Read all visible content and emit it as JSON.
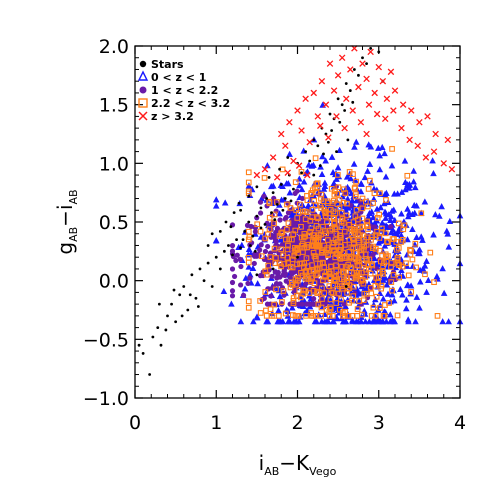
{
  "chart_data": {
    "type": "scatter",
    "title": "",
    "xlabel": {
      "main": "i",
      "sub": "AB",
      "dash": "−K",
      "sub2": "Vego"
    },
    "ylabel": {
      "main": "g",
      "sub": "AB",
      "dash": "−i",
      "sub2": "AB"
    },
    "xlim": [
      0,
      4
    ],
    "ylim": [
      -1.0,
      2.0
    ],
    "x_ticks": [
      0,
      1,
      2,
      3,
      4
    ],
    "x_tick_labels": [
      "0",
      "1",
      "2",
      "3",
      "4"
    ],
    "y_ticks": [
      -1.0,
      -0.5,
      0.0,
      0.5,
      1.0,
      1.5,
      2.0
    ],
    "y_tick_labels": [
      "−1.0",
      "−0.5",
      "0.0",
      "0.5",
      "1.0",
      "1.5",
      "2.0"
    ],
    "legend_position": "top-left",
    "series": [
      {
        "name": "Stars",
        "marker": "filled-circle",
        "color": "#000000",
        "points": [
          [
            0.05,
            -0.55
          ],
          [
            0.1,
            -0.62
          ],
          [
            0.18,
            -0.8
          ],
          [
            0.22,
            -0.48
          ],
          [
            0.28,
            -0.4
          ],
          [
            0.32,
            -0.55
          ],
          [
            0.4,
            -0.3
          ],
          [
            0.45,
            -0.2
          ],
          [
            0.5,
            -0.35
          ],
          [
            0.55,
            -0.12
          ],
          [
            0.6,
            -0.05
          ],
          [
            0.65,
            -0.25
          ],
          [
            0.7,
            0.05
          ],
          [
            0.75,
            -0.15
          ],
          [
            0.8,
            0.1
          ],
          [
            0.85,
            0.0
          ],
          [
            0.9,
            0.15
          ],
          [
            0.95,
            -0.05
          ],
          [
            1.0,
            0.2
          ],
          [
            1.05,
            0.1
          ],
          [
            1.1,
            0.25
          ],
          [
            1.15,
            0.3
          ],
          [
            1.2,
            0.22
          ],
          [
            1.25,
            0.35
          ],
          [
            1.3,
            0.28
          ],
          [
            1.35,
            0.42
          ],
          [
            1.4,
            0.5
          ],
          [
            1.45,
            0.38
          ],
          [
            1.5,
            0.55
          ],
          [
            1.55,
            0.62
          ],
          [
            1.6,
            0.48
          ],
          [
            1.62,
            0.7
          ],
          [
            1.68,
            0.58
          ],
          [
            1.7,
            0.75
          ],
          [
            1.75,
            0.65
          ],
          [
            1.8,
            0.82
          ],
          [
            1.85,
            0.7
          ],
          [
            1.9,
            0.9
          ],
          [
            1.95,
            0.78
          ],
          [
            2.0,
            1.0
          ],
          [
            2.05,
            0.92
          ],
          [
            2.1,
            1.1
          ],
          [
            2.15,
            1.02
          ],
          [
            2.2,
            1.2
          ],
          [
            2.25,
            1.15
          ],
          [
            2.3,
            1.3
          ],
          [
            2.35,
            1.25
          ],
          [
            2.4,
            1.42
          ],
          [
            2.45,
            1.38
          ],
          [
            2.5,
            1.55
          ],
          [
            2.55,
            1.5
          ],
          [
            2.6,
            1.68
          ],
          [
            2.65,
            1.62
          ],
          [
            2.7,
            1.8
          ],
          [
            2.75,
            1.75
          ],
          [
            2.8,
            1.9
          ],
          [
            2.85,
            1.85
          ],
          [
            2.9,
            1.98
          ],
          [
            3.0,
            1.95
          ],
          [
            3.05,
            1.7
          ],
          [
            1.3,
            0.6
          ],
          [
            1.4,
            0.72
          ],
          [
            1.5,
            0.8
          ],
          [
            1.55,
            0.45
          ],
          [
            1.65,
            0.88
          ],
          [
            1.72,
            0.52
          ],
          [
            1.78,
            0.95
          ],
          [
            1.82,
            0.6
          ],
          [
            1.88,
            1.05
          ],
          [
            1.92,
            0.68
          ],
          [
            0.9,
            0.3
          ],
          [
            0.95,
            0.4
          ],
          [
            1.05,
            0.42
          ],
          [
            1.12,
            0.5
          ],
          [
            1.18,
            0.46
          ],
          [
            1.22,
            0.58
          ],
          [
            1.28,
            0.66
          ],
          [
            1.33,
            0.35
          ],
          [
            1.42,
            0.3
          ],
          [
            1.48,
            0.25
          ],
          [
            2.2,
            0.9
          ],
          [
            2.28,
            0.98
          ],
          [
            2.32,
            1.08
          ],
          [
            2.38,
            1.18
          ],
          [
            2.42,
            1.28
          ],
          [
            2.48,
            1.1
          ],
          [
            2.52,
            1.35
          ],
          [
            2.58,
            1.45
          ],
          [
            2.62,
            1.2
          ],
          [
            2.68,
            1.52
          ],
          [
            0.3,
            -0.2
          ],
          [
            0.38,
            -0.42
          ],
          [
            0.48,
            -0.08
          ],
          [
            0.58,
            -0.3
          ],
          [
            0.68,
            -0.12
          ],
          [
            0.78,
            -0.22
          ],
          [
            1.5,
            0.05
          ],
          [
            1.7,
            0.1
          ],
          [
            2.0,
            0.2
          ],
          [
            2.6,
            -0.05
          ]
        ]
      },
      {
        "name": "0 < z < 1",
        "marker": "triangle",
        "color": "#1a1aff",
        "center": [
          2.55,
          0.25
        ],
        "spread": [
          0.55,
          0.38
        ],
        "extent": {
          "x": [
            1.0,
            4.0
          ],
          "y": [
            -0.35,
            1.5
          ]
        },
        "count": 900
      },
      {
        "name": "1 < z < 2.2",
        "marker": "filled-circle",
        "color": "#6a1aa8",
        "center": [
          2.15,
          0.22
        ],
        "spread": [
          0.38,
          0.2
        ],
        "extent": {
          "x": [
            1.2,
            3.4
          ],
          "y": [
            -0.2,
            0.9
          ]
        },
        "count": 650
      },
      {
        "name": "2.2 < z < 3.2",
        "marker": "open-square",
        "color": "#ff7f1a",
        "center": [
          2.45,
          0.25
        ],
        "spread": [
          0.45,
          0.32
        ],
        "extent": {
          "x": [
            1.4,
            4.0
          ],
          "y": [
            -0.3,
            1.6
          ]
        },
        "count": 550
      },
      {
        "name": "z > 3.2",
        "marker": "cross",
        "color": "#ff1a1a",
        "points": [
          [
            1.8,
            1.25
          ],
          [
            1.9,
            1.35
          ],
          [
            2.0,
            1.45
          ],
          [
            2.1,
            1.55
          ],
          [
            2.2,
            1.6
          ],
          [
            2.25,
            1.4
          ],
          [
            2.3,
            1.7
          ],
          [
            2.35,
            1.5
          ],
          [
            2.4,
            1.85
          ],
          [
            2.45,
            1.62
          ],
          [
            2.5,
            1.75
          ],
          [
            2.55,
            1.9
          ],
          [
            2.6,
            1.55
          ],
          [
            2.65,
            1.8
          ],
          [
            2.7,
            1.98
          ],
          [
            2.75,
            1.65
          ],
          [
            2.8,
            1.85
          ],
          [
            2.85,
            1.72
          ],
          [
            2.9,
            1.95
          ],
          [
            2.95,
            1.6
          ],
          [
            3.0,
            1.82
          ],
          [
            3.05,
            1.7
          ],
          [
            3.1,
            1.55
          ],
          [
            3.15,
            1.78
          ],
          [
            3.2,
            1.62
          ],
          [
            3.3,
            1.5
          ],
          [
            3.4,
            1.45
          ],
          [
            3.5,
            1.35
          ],
          [
            3.6,
            1.4
          ],
          [
            3.7,
            1.25
          ],
          [
            1.7,
            1.05
          ],
          [
            1.85,
            1.15
          ],
          [
            1.95,
            1.02
          ],
          [
            2.05,
            1.28
          ],
          [
            2.15,
            1.18
          ],
          [
            2.28,
            1.32
          ],
          [
            2.38,
            1.22
          ],
          [
            2.48,
            1.4
          ],
          [
            2.58,
            1.3
          ],
          [
            2.68,
            1.45
          ],
          [
            2.78,
            1.35
          ],
          [
            2.88,
            1.5
          ],
          [
            2.98,
            1.42
          ],
          [
            3.08,
            1.38
          ],
          [
            3.18,
            1.45
          ],
          [
            3.28,
            1.3
          ],
          [
            3.38,
            1.2
          ],
          [
            3.48,
            1.15
          ],
          [
            3.58,
            1.05
          ],
          [
            3.68,
            1.1
          ],
          [
            1.6,
            0.95
          ],
          [
            1.75,
            0.88
          ],
          [
            1.88,
            0.92
          ],
          [
            2.02,
            0.98
          ],
          [
            2.12,
            0.9
          ],
          [
            3.8,
            1.0
          ],
          [
            3.85,
            1.2
          ],
          [
            3.9,
            0.95
          ],
          [
            1.5,
            0.9
          ],
          [
            2.85,
            1.25
          ]
        ]
      }
    ]
  }
}
